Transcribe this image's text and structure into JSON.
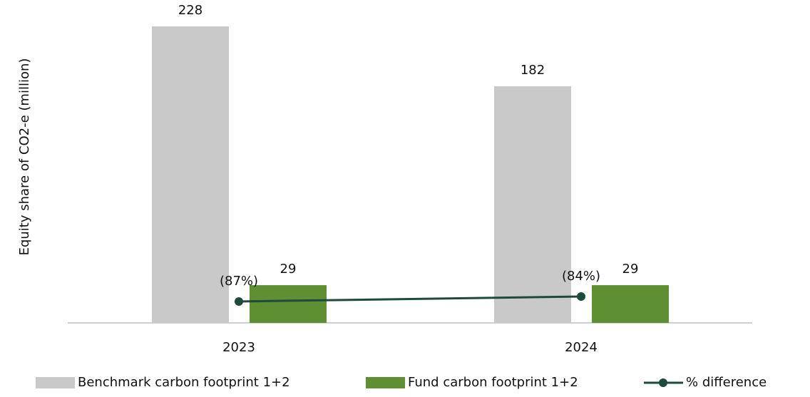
{
  "chart_data": {
    "type": "bar_line",
    "y_label": "Equity share of CO2-e (million)",
    "categories": [
      "2023",
      "2024"
    ],
    "series": [
      {
        "name": "Benchmark carbon footprint 1+2",
        "type": "bar",
        "color": "#c9c9c9",
        "values": [
          228,
          182
        ]
      },
      {
        "name": "Fund carbon footprint 1+2",
        "type": "bar",
        "color": "#5e8f32",
        "values": [
          29,
          29
        ]
      },
      {
        "name": "% difference",
        "type": "line",
        "color": "#1e4a3d",
        "axis": "y2",
        "values": [
          -87,
          -84
        ],
        "value_labels": [
          "(87%)",
          "(84%)"
        ]
      }
    ],
    "ylim": [
      0,
      228
    ],
    "y2lim": [
      -100,
      80
    ],
    "grid": false
  }
}
